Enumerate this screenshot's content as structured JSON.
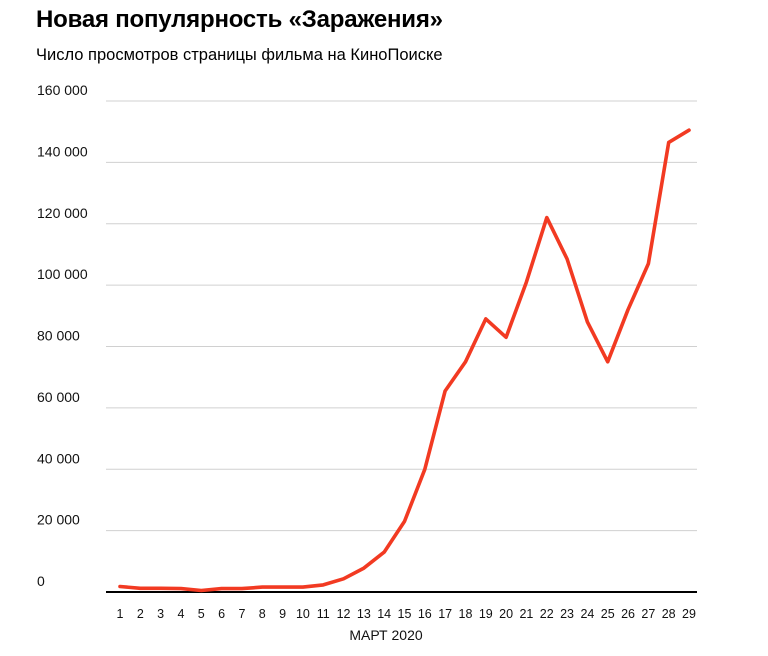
{
  "chart_data": {
    "type": "line",
    "title": "Новая популярность «Заражения»",
    "subtitle": "Число просмотров страницы фильма на КиноПоиске",
    "xlabel": "МАРТ 2020",
    "ylabel": "",
    "categories": [
      "1",
      "2",
      "3",
      "4",
      "5",
      "6",
      "7",
      "8",
      "9",
      "10",
      "11",
      "12",
      "13",
      "14",
      "15",
      "16",
      "17",
      "18",
      "19",
      "20",
      "21",
      "22",
      "23",
      "24",
      "25",
      "26",
      "27",
      "28",
      "29"
    ],
    "values": [
      1800,
      1200,
      1200,
      1100,
      500,
      1100,
      1100,
      1600,
      1600,
      1600,
      2300,
      4300,
      7800,
      13000,
      23000,
      40000,
      65500,
      75000,
      89000,
      83000,
      101000,
      122000,
      108500,
      88000,
      75000,
      92000,
      107000,
      146500,
      150500
    ],
    "yticks": [
      0,
      20000,
      40000,
      60000,
      80000,
      100000,
      120000,
      140000,
      160000
    ],
    "ytick_labels": [
      "0",
      "20 000",
      "40 000",
      "60 000",
      "80 000",
      "100 000",
      "120 000",
      "140 000",
      "160 000"
    ],
    "ylim": [
      0,
      160000
    ],
    "grid": true,
    "line_color": "#f23a22",
    "grid_color": "#d0d0d0"
  }
}
